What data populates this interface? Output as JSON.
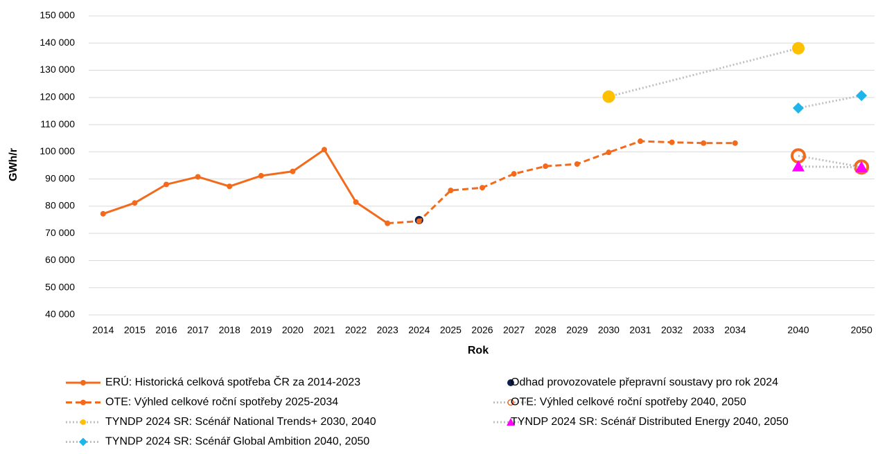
{
  "chart_data": {
    "type": "line",
    "ylabel": "GWh/r",
    "xlabel": "Rok",
    "categories": [
      "2014",
      "2015",
      "2016",
      "2017",
      "2018",
      "2019",
      "2020",
      "2021",
      "2022",
      "2023",
      "2024",
      "2025",
      "2026",
      "2027",
      "2028",
      "2029",
      "2030",
      "2031",
      "2032",
      "2033",
      "2034",
      null,
      "2040",
      null,
      "2050"
    ],
    "ylim": [
      40000,
      150000
    ],
    "yticks": [
      {
        "value": 40000,
        "label": "40 000"
      },
      {
        "value": 50000,
        "label": "50 000"
      },
      {
        "value": 60000,
        "label": "60 000"
      },
      {
        "value": 70000,
        "label": "70 000"
      },
      {
        "value": 80000,
        "label": "80 000"
      },
      {
        "value": 90000,
        "label": "90 000"
      },
      {
        "value": 100000,
        "label": "100 000"
      },
      {
        "value": 110000,
        "label": "110 000"
      },
      {
        "value": 120000,
        "label": "120 000"
      },
      {
        "value": 130000,
        "label": "130 000"
      },
      {
        "value": 140000,
        "label": "140 000"
      },
      {
        "value": 150000,
        "label": "150 000"
      }
    ],
    "grid": true,
    "series": [
      {
        "name": "ERÚ: Historická celková spotřeba ČR za 2014-2023",
        "color": "#f26b1d",
        "line": "solid",
        "marker": "circle",
        "x": [
          "2014",
          "2015",
          "2016",
          "2017",
          "2018",
          "2019",
          "2020",
          "2021",
          "2022",
          "2023"
        ],
        "values": [
          77200,
          81200,
          88000,
          90800,
          87300,
          91200,
          92800,
          100800,
          81500,
          73700
        ]
      },
      {
        "name": "Odhad provozovatele přepravní soustavy pro rok 2024",
        "color": "#0d1f4f",
        "line": "none",
        "marker": "circle-big",
        "x": [
          "2024"
        ],
        "values": [
          74900
        ]
      },
      {
        "name": "OTE: Výhled celkové roční spotřeby 2025-2034",
        "color": "#f26b1d",
        "line": "dashed",
        "marker": "circle",
        "x": [
          "2023",
          "2024",
          "2025",
          "2026",
          "2027",
          "2028",
          "2029",
          "2030",
          "2031",
          "2032",
          "2033",
          "2034"
        ],
        "values": [
          73700,
          74500,
          85800,
          86800,
          91900,
          94700,
          95500,
          99800,
          103900,
          103500,
          103200,
          103200
        ]
      },
      {
        "name": "OTE: Výhled celkové roční spotřeby 2040, 2050",
        "color": "#f26b1d",
        "line_color": "#bfbfbf",
        "line": "dotted",
        "marker": "open-circle",
        "x": [
          "2040",
          "2050"
        ],
        "values": [
          98500,
          94400
        ]
      },
      {
        "name": "TYNDP 2024 SR: Scénář National Trends+ 2030, 2040",
        "color": "#ffc000",
        "line_color": "#bfbfbf",
        "line": "dotted",
        "marker": "circle-big",
        "x": [
          "2030",
          "2040"
        ],
        "values": [
          120300,
          138100
        ]
      },
      {
        "name": "TYNDP 2024 SR: Scénář Distributed Energy 2040, 2050",
        "color": "#ff00ff",
        "line_color": "#bfbfbf",
        "line": "dotted",
        "marker": "triangle",
        "x": [
          "2040",
          "2050"
        ],
        "values": [
          94600,
          94300
        ]
      },
      {
        "name": "TYNDP 2024 SR: Scénář Global Ambition 2040, 2050",
        "color": "#1fb5ea",
        "line_color": "#bfbfbf",
        "line": "dotted",
        "marker": "diamond",
        "x": [
          "2040",
          "2050"
        ],
        "values": [
          116100,
          120700
        ]
      }
    ]
  }
}
